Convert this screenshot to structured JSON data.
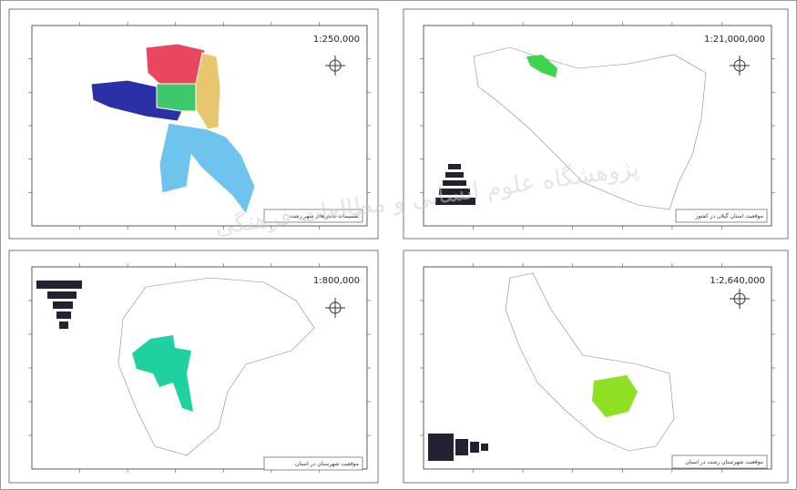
{
  "panels": [
    {
      "scale": "1:250,000",
      "caption": "تقسیمات بخش‌های شهر رشت"
    },
    {
      "scale": "1:21,000,000",
      "caption": "موقعیت استان گیلان در کشور"
    },
    {
      "scale": "1:800,000",
      "caption": "موقعیت شهرستان در استان"
    },
    {
      "scale": "1:2,640,000",
      "caption": "موقعیت شهرستان رشت در استان"
    }
  ],
  "watermark": "پژوهشگاه علوم انسانی و مطالعات فرهنگی"
}
